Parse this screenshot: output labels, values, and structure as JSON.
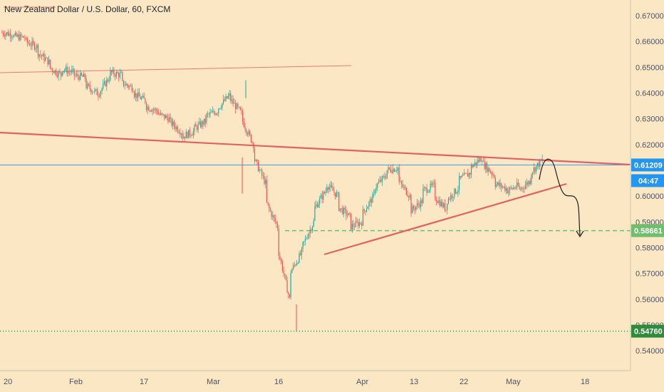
{
  "chart_data": {
    "type": "candlestick",
    "title": "New Zealand Dollar / U.S. Dollar, 60, FXCM",
    "y_ticks": [
      "0.67000",
      "0.66000",
      "0.65000",
      "0.64000",
      "0.63000",
      "0.62000",
      "0.60000",
      "0.59000",
      "0.58000",
      "0.57000",
      "0.56000",
      "0.55000",
      "0.54000"
    ],
    "y_tick_values": [
      0.67,
      0.66,
      0.65,
      0.64,
      0.63,
      0.62,
      0.6,
      0.59,
      0.58,
      0.57,
      0.56,
      0.55,
      0.54
    ],
    "x_ticks": [
      "20",
      "Feb",
      "17",
      "Mar",
      "16",
      "Apr",
      "13",
      "22",
      "May",
      "18"
    ],
    "ylim": [
      0.5345,
      0.675
    ],
    "current_price": {
      "value": 0.61209,
      "label": "0.61209",
      "countdown": "04:47",
      "color": "#2196f3"
    },
    "support_level": {
      "value": 0.58661,
      "label": "0.58661",
      "color": "#6fbe6c"
    },
    "low_level": {
      "value": 0.5476,
      "label": "0.54760",
      "color": "#2e8b3a"
    },
    "colors": {
      "up": "#26a69a",
      "down": "#ef5350",
      "trendline": "#e06262",
      "background": "#fbe7c4"
    },
    "price_path": [
      [
        0.6635,
        0.6628
      ],
      [
        0.662,
        0.6615
      ],
      [
        0.66,
        0.658
      ],
      [
        0.656,
        0.652
      ],
      [
        0.65,
        0.647
      ],
      [
        0.6495,
        0.648
      ],
      [
        0.647,
        0.646
      ],
      [
        0.643,
        0.64
      ],
      [
        0.639,
        0.646
      ],
      [
        0.648,
        0.647
      ],
      [
        0.644,
        0.642
      ],
      [
        0.64,
        0.637
      ],
      [
        0.635,
        0.633
      ],
      [
        0.632,
        0.63
      ],
      [
        0.629,
        0.625
      ],
      [
        0.623,
        0.625
      ],
      [
        0.626,
        0.629
      ],
      [
        0.631,
        0.633
      ],
      [
        0.634,
        0.639
      ],
      [
        0.638,
        0.632
      ],
      [
        0.63,
        0.62
      ],
      [
        0.615,
        0.605
      ],
      [
        0.598,
        0.588
      ],
      [
        0.58,
        0.56
      ],
      [
        0.57,
        0.578
      ],
      [
        0.58,
        0.59
      ],
      [
        0.595,
        0.602
      ],
      [
        0.605,
        0.6
      ],
      [
        0.596,
        0.592
      ],
      [
        0.588,
        0.59
      ],
      [
        0.593,
        0.6
      ],
      [
        0.603,
        0.608
      ],
      [
        0.61,
        0.611
      ],
      [
        0.606,
        0.6
      ],
      [
        0.594,
        0.598
      ],
      [
        0.602,
        0.604
      ],
      [
        0.6,
        0.595
      ],
      [
        0.598,
        0.603
      ],
      [
        0.606,
        0.609
      ],
      [
        0.611,
        0.615
      ],
      [
        0.613,
        0.608
      ],
      [
        0.605,
        0.603
      ],
      [
        0.602,
        0.604
      ],
      [
        0.602,
        0.606
      ],
      [
        0.609,
        0.614
      ]
    ]
  }
}
